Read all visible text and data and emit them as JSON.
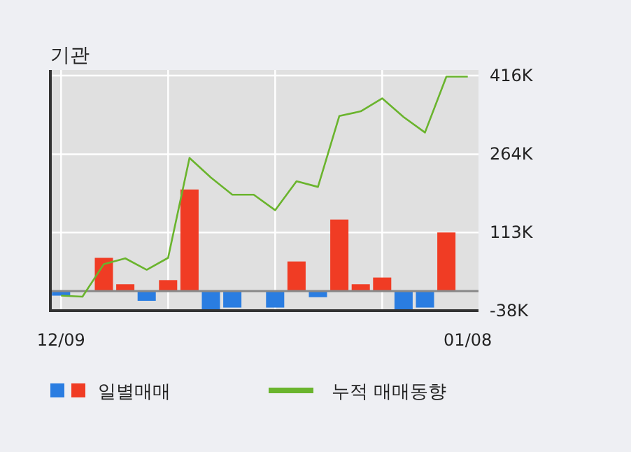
{
  "chart_data": {
    "type": "bar",
    "title": "기관",
    "categories": [
      "12/09",
      null,
      null,
      null,
      null,
      null,
      null,
      null,
      null,
      null,
      null,
      null,
      null,
      null,
      null,
      null,
      null,
      null,
      null,
      "01/08"
    ],
    "series": [
      {
        "name": "일별매매",
        "colors": [
          "#2a7de1",
          "#f03c24",
          "#f03c24",
          "#f03c24",
          "#2a7de1",
          "#f03c24",
          "#f03c24",
          "#2a7de1",
          "#2a7de1",
          "#f03c24",
          "#2a7de1",
          "#f03c24",
          "#2a7de1",
          "#f03c24",
          "#f03c24",
          "#f03c24",
          "#2a7de1",
          "#2a7de1",
          "#f03c24",
          "#f03c24"
        ],
        "values": [
          -9,
          0,
          64,
          13,
          -19,
          21,
          196,
          -38,
          -32,
          0,
          -32,
          57,
          -12,
          138,
          13,
          26,
          -38,
          -32,
          113,
          0
        ]
      },
      {
        "name": "누적 매매동향",
        "type": "line",
        "color": "#6ab42d",
        "values": [
          -9,
          -11,
          52,
          63,
          41,
          64,
          257,
          219,
          186,
          186,
          156,
          212,
          201,
          338,
          347,
          372,
          336,
          306,
          414,
          414
        ]
      }
    ],
    "ylim": [
      -38,
      416
    ],
    "yticks": [
      {
        "value": -38,
        "label": "-38K"
      },
      {
        "value": 113,
        "label": "113K"
      },
      {
        "value": 264,
        "label": "264K"
      },
      {
        "value": 416,
        "label": "416K"
      }
    ],
    "grid": true,
    "legend": "bottom"
  }
}
